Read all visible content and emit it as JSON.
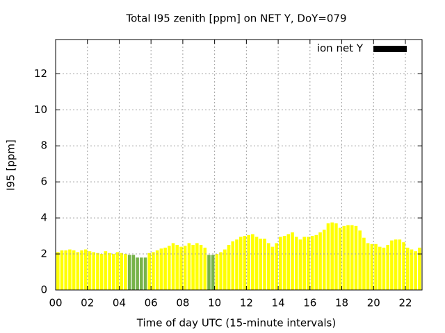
{
  "chart_data": {
    "type": "bar",
    "title": "Total I95 zenith [ppm] on NET Y, DoY=079",
    "xlabel": "Time of day UTC (15-minute intervals)",
    "ylabel": "I95 [ppm]",
    "x": [
      0,
      0.25,
      0.5,
      0.75,
      1,
      1.25,
      1.5,
      1.75,
      2,
      2.25,
      2.5,
      2.75,
      3,
      3.25,
      3.5,
      3.75,
      4,
      4.25,
      4.5,
      4.75,
      5,
      5.25,
      5.5,
      5.75,
      6,
      6.25,
      6.5,
      6.75,
      7,
      7.25,
      7.5,
      7.75,
      8,
      8.25,
      8.5,
      8.75,
      9,
      9.25,
      9.5,
      9.75,
      10,
      10.25,
      10.5,
      10.75,
      11,
      11.25,
      11.5,
      11.75,
      12,
      12.25,
      12.5,
      12.75,
      13,
      13.25,
      13.5,
      13.75,
      14,
      14.25,
      14.5,
      14.75,
      15,
      15.25,
      15.5,
      15.75,
      16,
      16.25,
      16.5,
      16.75,
      17,
      17.25,
      17.5,
      17.75,
      18,
      18.25,
      18.5,
      18.75,
      19,
      19.25,
      19.5,
      19.75,
      20,
      20.25,
      20.5,
      20.75,
      21,
      21.25,
      21.5,
      21.75,
      22,
      22.25,
      22.5,
      22.75
    ],
    "series": [
      {
        "name": "ion net Y",
        "color": "#000000",
        "values": [
          2.1,
          2.2,
          2.2,
          2.25,
          2.2,
          2.1,
          2.2,
          2.25,
          2.15,
          2.1,
          2.05,
          2.0,
          2.15,
          2.05,
          2.0,
          2.1,
          2.05,
          2.0,
          1.95,
          1.95,
          1.8,
          1.8,
          1.8,
          2.05,
          2.1,
          2.2,
          2.3,
          2.35,
          2.45,
          2.6,
          2.5,
          2.4,
          2.45,
          2.6,
          2.5,
          2.6,
          2.5,
          2.35,
          1.95,
          1.95,
          2.0,
          2.1,
          2.25,
          2.5,
          2.7,
          2.8,
          2.95,
          3.0,
          3.05,
          3.1,
          2.95,
          2.85,
          2.85,
          2.6,
          2.4,
          2.6,
          2.95,
          3.0,
          3.1,
          3.2,
          2.95,
          2.8,
          2.95,
          2.95,
          3.0,
          3.05,
          3.2,
          3.35,
          3.7,
          3.75,
          3.7,
          3.45,
          3.55,
          3.6,
          3.6,
          3.55,
          3.3,
          2.9,
          2.6,
          2.55,
          2.55,
          2.4,
          2.35,
          2.5,
          2.75,
          2.8,
          2.8,
          2.65,
          2.35,
          2.25,
          2.15,
          2.35
        ],
        "bar_colors": [
          "#ffff00",
          "#ffff00",
          "#ffff00",
          "#ffff00",
          "#ffff00",
          "#ffff00",
          "#ffff00",
          "#ffff00",
          "#ffff00",
          "#ffff00",
          "#ffff00",
          "#ffff00",
          "#ffff00",
          "#ffff00",
          "#ffff00",
          "#ffff00",
          "#ffff00",
          "#ffff00",
          "#77b34a",
          "#77b34a",
          "#77b34a",
          "#77b34a",
          "#77b34a",
          "#ffff00",
          "#ffff00",
          "#ffff00",
          "#ffff00",
          "#ffff00",
          "#ffff00",
          "#ffff00",
          "#ffff00",
          "#ffff00",
          "#ffff00",
          "#ffff00",
          "#ffff00",
          "#ffff00",
          "#ffff00",
          "#ffff00",
          "#77b34a",
          "#77b34a",
          "#ffff00",
          "#ffff00",
          "#ffff00",
          "#ffff00",
          "#ffff00",
          "#ffff00",
          "#ffff00",
          "#ffff00",
          "#ffff00",
          "#ffff00",
          "#ffff00",
          "#ffff00",
          "#ffff00",
          "#ffff00",
          "#ffff00",
          "#ffff00",
          "#ffff00",
          "#ffff00",
          "#ffff00",
          "#ffff00",
          "#ffff00",
          "#ffff00",
          "#ffff00",
          "#ffff00",
          "#ffff00",
          "#ffff00",
          "#ffff00",
          "#ffff00",
          "#ffff00",
          "#ffff00",
          "#ffff00",
          "#ffff00",
          "#ffff00",
          "#ffff00",
          "#ffff00",
          "#ffff00",
          "#ffff00",
          "#ffff00",
          "#ffff00",
          "#ffff00",
          "#ffff00",
          "#ffff00",
          "#ffff00",
          "#ffff00",
          "#ffff00",
          "#ffff00",
          "#ffff00",
          "#ffff00",
          "#ffff00",
          "#ffff00",
          "#ffff00",
          "#ffff00"
        ]
      }
    ],
    "xlim": [
      0,
      23.05
    ],
    "xticks": [
      {
        "value": 0,
        "label": "00"
      },
      {
        "value": 2,
        "label": "02"
      },
      {
        "value": 4,
        "label": "04"
      },
      {
        "value": 6,
        "label": "06"
      },
      {
        "value": 8,
        "label": "08"
      },
      {
        "value": 10,
        "label": "10"
      },
      {
        "value": 12,
        "label": "12"
      },
      {
        "value": 14,
        "label": "14"
      },
      {
        "value": 16,
        "label": "16"
      },
      {
        "value": 18,
        "label": "18"
      },
      {
        "value": 20,
        "label": "20"
      },
      {
        "value": 22,
        "label": "22"
      }
    ],
    "ylim": [
      0,
      13.9
    ],
    "yticks": [
      0,
      2,
      4,
      6,
      8,
      10,
      12
    ],
    "grid": true,
    "legend": "top-right"
  }
}
